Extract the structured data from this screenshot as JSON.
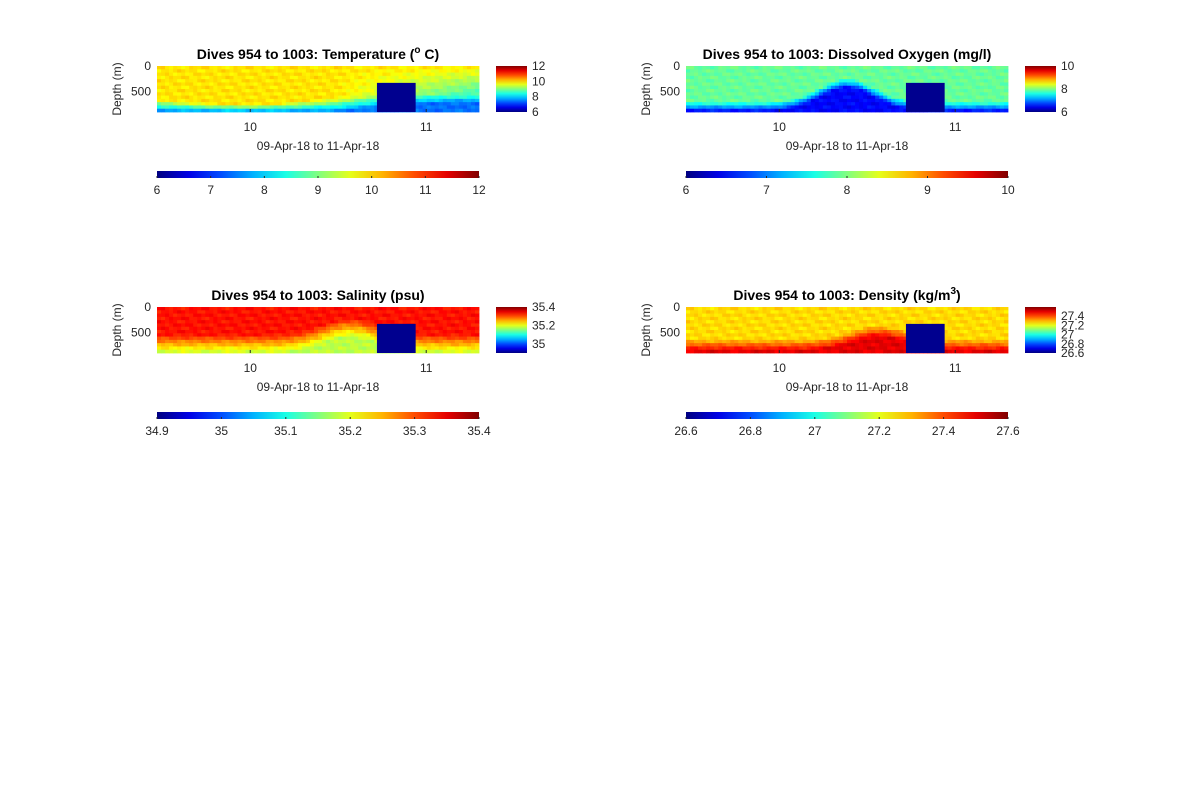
{
  "chart_data": [
    {
      "type": "heatmap",
      "title": "Dives 954 to 1003: Temperature (",
      "title_sup": "o",
      "title_after": " C)",
      "xlabel": "09-Apr-18 to 11-Apr-18",
      "ylabel": "Depth (m)",
      "xlim": [
        9.47,
        11.3
      ],
      "ylim": [
        0,
        900
      ],
      "y_reversed": true,
      "xticks": [
        10,
        11
      ],
      "yticks": [
        0,
        500
      ],
      "clim": [
        6,
        12
      ],
      "side_colorbar_ticks": [
        6,
        8,
        10,
        12
      ],
      "bottom_colorbar_ticks": [
        6,
        7,
        8,
        9,
        10,
        11,
        12
      ],
      "colormap": "jet",
      "field": {
        "surface": 9.9,
        "deep": 7.4,
        "feature": "warm-deep-tongue-left"
      },
      "data_gap": {
        "x": [
          10.72,
          10.94
        ],
        "depth": [
          330,
          900
        ]
      }
    },
    {
      "type": "heatmap",
      "title": "Dives 954 to 1003: Dissolved Oxygen (mg/l)",
      "xlabel": "09-Apr-18 to 11-Apr-18",
      "ylabel": "Depth (m)",
      "xlim": [
        9.47,
        11.3
      ],
      "ylim": [
        0,
        900
      ],
      "y_reversed": true,
      "xticks": [
        10,
        11
      ],
      "yticks": [
        0,
        500
      ],
      "clim": [
        6,
        10
      ],
      "side_colorbar_ticks": [
        6,
        8,
        10
      ],
      "bottom_colorbar_ticks": [
        6,
        7,
        8,
        9,
        10
      ],
      "colormap": "jet",
      "field": {
        "surface": 7.9,
        "deep": 6.5,
        "feature": "low-oxygen-rising-near-10.5"
      },
      "data_gap": {
        "x": [
          10.72,
          10.94
        ],
        "depth": [
          330,
          900
        ]
      }
    },
    {
      "type": "heatmap",
      "title": "Dives 954 to 1003: Salinity (psu)",
      "xlabel": "09-Apr-18 to 11-Apr-18",
      "ylabel": "Depth (m)",
      "xlim": [
        9.47,
        11.3
      ],
      "ylim": [
        0,
        900
      ],
      "y_reversed": true,
      "xticks": [
        10,
        11
      ],
      "yticks": [
        0,
        500
      ],
      "clim": [
        34.9,
        35.4
      ],
      "side_colorbar_ticks": [
        35,
        35.2,
        35.4
      ],
      "bottom_colorbar_ticks": [
        34.9,
        35,
        35.1,
        35.2,
        35.3,
        35.4
      ],
      "colormap": "jet",
      "field": {
        "surface": 35.33,
        "deep": 35.18,
        "feature": "fresher-deep-water"
      },
      "data_gap": {
        "x": [
          10.72,
          10.94
        ],
        "depth": [
          330,
          900
        ]
      }
    },
    {
      "type": "heatmap",
      "title": "Dives 954 to 1003: Density (kg/m",
      "title_sup": "3",
      "title_after": ")",
      "xlabel": "09-Apr-18 to 11-Apr-18",
      "ylabel": "Depth (m)",
      "xlim": [
        9.47,
        11.3
      ],
      "ylim": [
        0,
        900
      ],
      "y_reversed": true,
      "xticks": [
        10,
        11
      ],
      "yticks": [
        0,
        500
      ],
      "clim": [
        26.6,
        27.6
      ],
      "side_colorbar_ticks": [
        26.6,
        26.8,
        27,
        27.2,
        27.4
      ],
      "bottom_colorbar_ticks": [
        26.6,
        26.8,
        27,
        27.2,
        27.4,
        27.6
      ],
      "colormap": "jet",
      "field": {
        "surface": 27.26,
        "deep": 27.5,
        "feature": "dense-bottom-layer"
      },
      "data_gap": {
        "x": [
          10.72,
          10.94
        ],
        "depth": [
          330,
          900
        ]
      }
    }
  ]
}
